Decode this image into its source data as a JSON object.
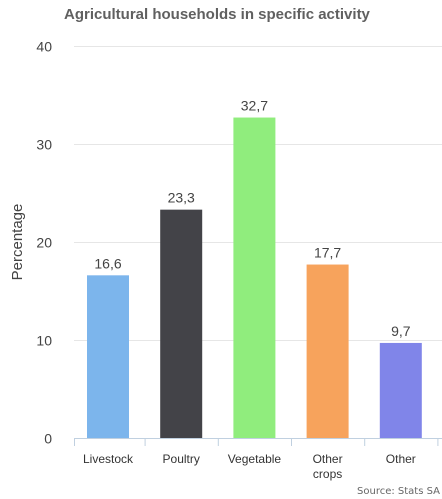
{
  "chart_data": {
    "type": "bar",
    "title": "Agricultural households in specific activity",
    "xlabel": "",
    "ylabel": "Percentage",
    "categories": [
      "Livestock",
      "Poultry",
      "Vegetable",
      "Other crops",
      "Other"
    ],
    "values": [
      16.6,
      23.3,
      32.7,
      17.7,
      9.7
    ],
    "value_labels": [
      "16,6",
      "23,3",
      "32,7",
      "17,7",
      "9,7"
    ],
    "colors": [
      "#7cb5ec",
      "#434348",
      "#90ed7d",
      "#f7a35c",
      "#8085e9"
    ],
    "ylim": [
      0,
      40
    ],
    "yticks": [
      0,
      10,
      20,
      30,
      40
    ],
    "grid": true,
    "legend": "none"
  },
  "source": "Source: Stats SA"
}
